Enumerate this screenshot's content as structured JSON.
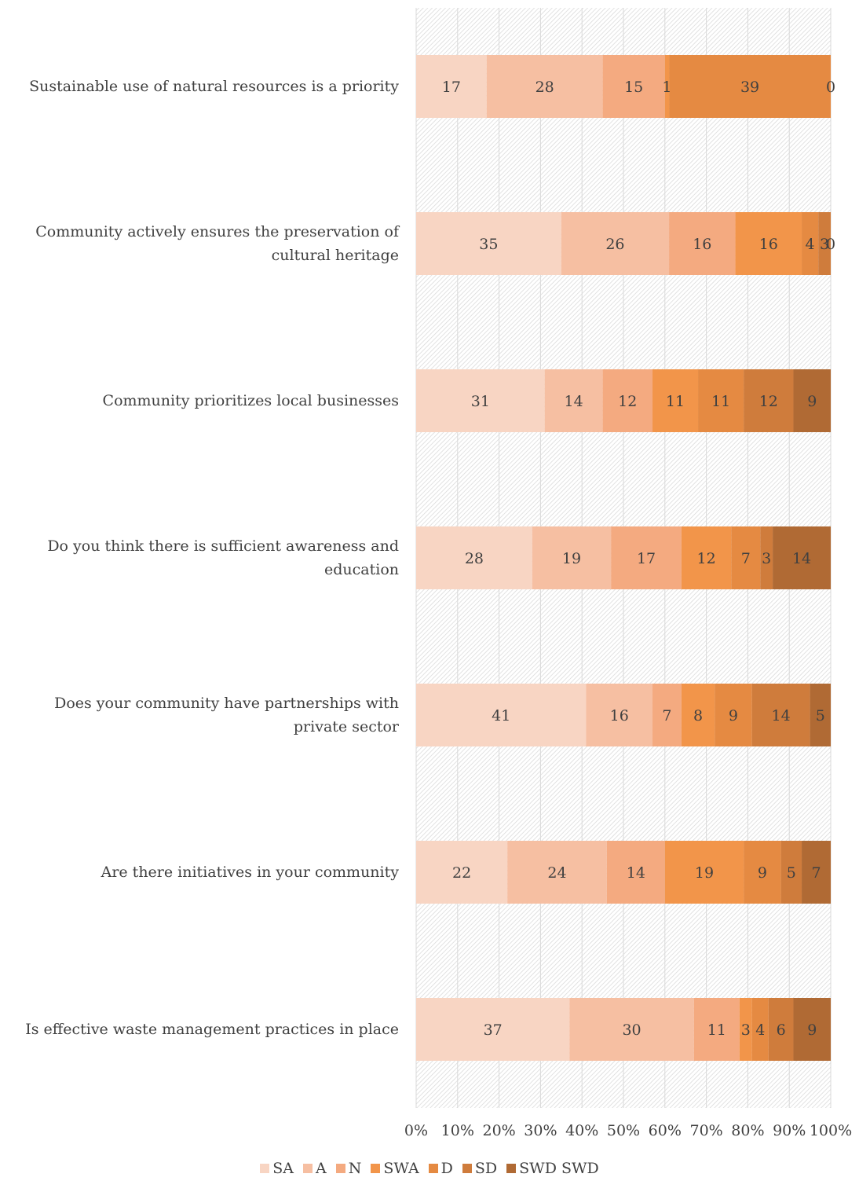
{
  "chart_data": {
    "type": "bar",
    "orientation": "horizontal",
    "stacked": "percent",
    "categories": [
      "Sustainable use of natural resources is a priority",
      "Community actively ensures the preservation of cultural heritage",
      "Community prioritizes local businesses",
      "Do you think there is sufficient awareness and education",
      "Does your community have partnerships with private sector",
      "Are there initiatives in your community",
      "Is effective waste management practices in place"
    ],
    "series": [
      {
        "name": "SA",
        "color": "#F8D5C3",
        "values": [
          17,
          35,
          31,
          28,
          41,
          22,
          37
        ]
      },
      {
        "name": "A",
        "color": "#F6BFA2",
        "values": [
          28,
          26,
          14,
          19,
          16,
          24,
          30
        ]
      },
      {
        "name": "N",
        "color": "#F4AA80",
        "values": [
          15,
          16,
          12,
          17,
          7,
          14,
          11
        ]
      },
      {
        "name": "SWA",
        "color": "#F2954A",
        "values": [
          1,
          16,
          11,
          12,
          8,
          19,
          3
        ]
      },
      {
        "name": "D",
        "color": "#E58A42",
        "values": [
          39,
          4,
          11,
          7,
          9,
          9,
          4
        ]
      },
      {
        "name": "SD",
        "color": "#CF7C3C",
        "values": [
          0,
          3,
          12,
          3,
          14,
          5,
          6
        ]
      },
      {
        "name": "SWD SWD",
        "color": "#B06A34",
        "values": [
          null,
          0,
          9,
          14,
          5,
          7,
          9
        ]
      }
    ],
    "xaxis": {
      "ticks": [
        "0%",
        "10%",
        "20%",
        "30%",
        "40%",
        "50%",
        "60%",
        "70%",
        "80%",
        "90%",
        "100%"
      ],
      "range": [
        0,
        100
      ]
    },
    "grid": true,
    "legend": "bottom"
  }
}
